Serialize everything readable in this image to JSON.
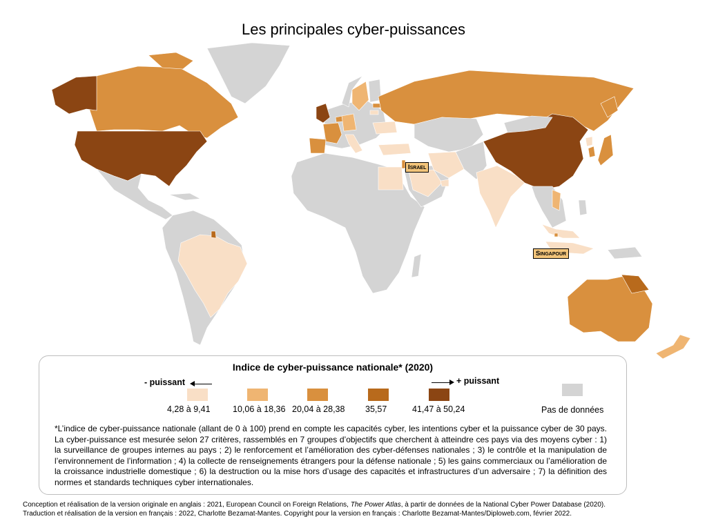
{
  "title": "Les principales cyber-puissances",
  "colors": {
    "class1": "#f9dfc6",
    "class2": "#efb572",
    "class3": "#d9903e",
    "class4": "#b86a1c",
    "class5": "#8b4513",
    "nodata": "#d4d4d4",
    "ocean": "#ffffff"
  },
  "callouts": {
    "israel": "Israel",
    "singapore": "Singapour"
  },
  "legend": {
    "title": "Indice de cyber-puissance nationale* (2020)",
    "less_label": "- puissant",
    "more_label": "+ puissant",
    "classes": [
      {
        "label": "4,28 à 9,41",
        "color": "#f9dfc6"
      },
      {
        "label": "10,06 à 18,36",
        "color": "#efb572"
      },
      {
        "label": "20,04 à 28,38",
        "color": "#d9903e"
      },
      {
        "label": "35,57",
        "color": "#b86a1c"
      },
      {
        "label": "41,47 à 50,24",
        "color": "#8b4513"
      }
    ],
    "nodata_label": "Pas de données",
    "note": "*L’indice de cyber-puissance nationale (allant de 0 à 100) prend en compte les capacités cyber, les intentions cyber et la puissance cyber de 30 pays. La cyber-puissance est mesurée selon 27 critères, rassemblés en 7 groupes d’objectifs que cherchent à atteindre ces pays via des moyens cyber : 1) la surveillance de groupes internes au pays ; 2) le renforcement et l’amélioration des cyber-défenses nationales ; 3) le contrôle et la manipulation de l’environnement de l’information ; 4) la collecte de renseignements étrangers pour la défense nationale ; 5) les gains commerciaux ou l’amélioration de la croissance industrielle domestique ; 6) la destruction ou la mise hors d’usage des capacités et infrastructures d’un adversaire ; 7) la définition des normes et standards techniques cyber internationales."
  },
  "credits": {
    "line1_prefix": "Conception et réalisation de la version originale en anglais : 2021, European Council on Foreign Relations, ",
    "line1_italic": "The Power Atlas",
    "line1_suffix": ", à partir de données de la National Cyber Power Database (2020).",
    "line2": "Traduction et réalisation de la version en français : 2022, Charlotte Bezamat-Mantes. Copyright pour la version en français : Charlotte Bezamat-Mantes/Diploweb.com, février 2022."
  }
}
